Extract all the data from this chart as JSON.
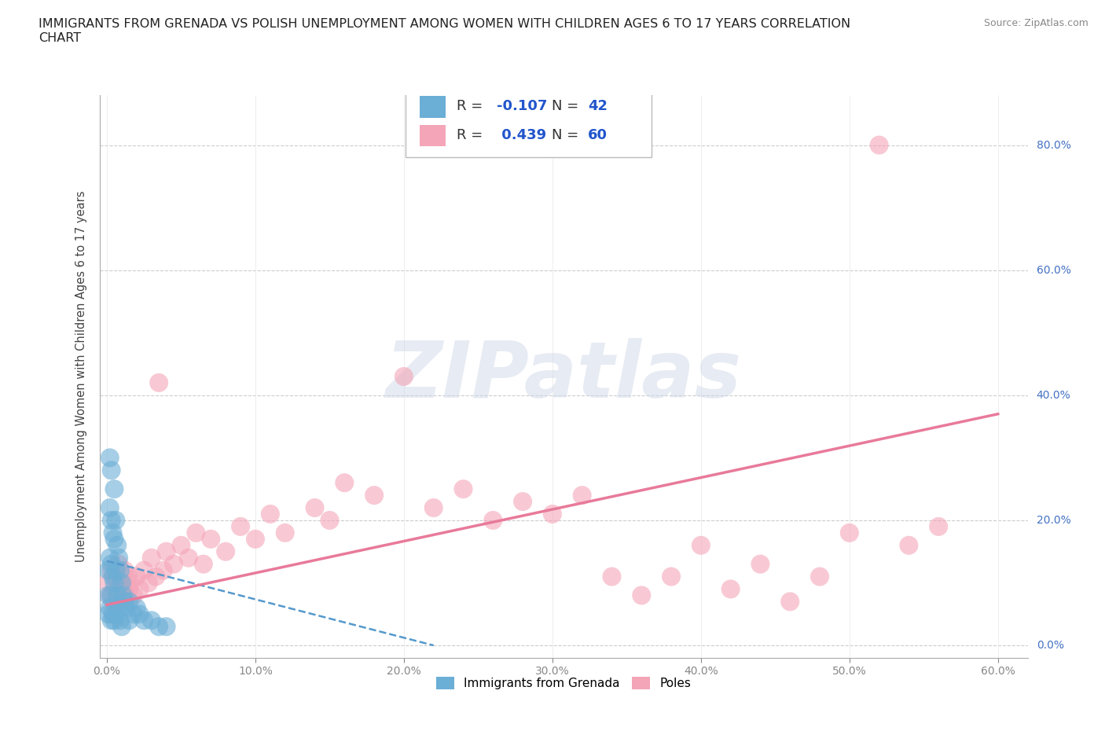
{
  "title": "IMMIGRANTS FROM GRENADA VS POLISH UNEMPLOYMENT AMONG WOMEN WITH CHILDREN AGES 6 TO 17 YEARS CORRELATION\nCHART",
  "source": "Source: ZipAtlas.com",
  "ylabel": "Unemployment Among Women with Children Ages 6 to 17 years",
  "xlim": [
    -0.005,
    0.62
  ],
  "ylim": [
    -0.02,
    0.88
  ],
  "xticks": [
    0.0,
    0.1,
    0.2,
    0.3,
    0.4,
    0.5,
    0.6
  ],
  "xticklabels": [
    "0.0%",
    "10.0%",
    "20.0%",
    "30.0%",
    "40.0%",
    "50.0%",
    "60.0%"
  ],
  "yticks": [
    0.0,
    0.2,
    0.4,
    0.6,
    0.8
  ],
  "yticklabels": [
    "0.0%",
    "20.0%",
    "40.0%",
    "60.0%",
    "80.0%"
  ],
  "grenada_color": "#6baed6",
  "poles_color": "#f4a5b8",
  "grenada_line_color": "#5599cc",
  "poles_line_color": "#e87a9a",
  "grenada_R": -0.107,
  "grenada_N": 42,
  "poles_R": 0.439,
  "poles_N": 60,
  "watermark": "ZIPatlas",
  "background_color": "#ffffff",
  "grenada_x": [
    0.001,
    0.001,
    0.001,
    0.002,
    0.002,
    0.002,
    0.002,
    0.003,
    0.003,
    0.003,
    0.003,
    0.003,
    0.004,
    0.004,
    0.004,
    0.005,
    0.005,
    0.005,
    0.005,
    0.006,
    0.006,
    0.006,
    0.007,
    0.007,
    0.008,
    0.008,
    0.009,
    0.009,
    0.01,
    0.01,
    0.011,
    0.012,
    0.013,
    0.015,
    0.015,
    0.018,
    0.02,
    0.022,
    0.025,
    0.03,
    0.035,
    0.04
  ],
  "grenada_y": [
    0.12,
    0.08,
    0.05,
    0.3,
    0.22,
    0.14,
    0.06,
    0.28,
    0.2,
    0.13,
    0.08,
    0.04,
    0.18,
    0.11,
    0.05,
    0.25,
    0.17,
    0.1,
    0.04,
    0.2,
    0.12,
    0.05,
    0.16,
    0.08,
    0.14,
    0.06,
    0.12,
    0.04,
    0.1,
    0.03,
    0.08,
    0.07,
    0.06,
    0.07,
    0.04,
    0.05,
    0.06,
    0.05,
    0.04,
    0.04,
    0.03,
    0.03
  ],
  "poles_x": [
    0.001,
    0.002,
    0.003,
    0.004,
    0.005,
    0.006,
    0.007,
    0.008,
    0.009,
    0.01,
    0.011,
    0.012,
    0.013,
    0.014,
    0.015,
    0.016,
    0.018,
    0.02,
    0.022,
    0.025,
    0.028,
    0.03,
    0.033,
    0.035,
    0.038,
    0.04,
    0.045,
    0.05,
    0.055,
    0.06,
    0.065,
    0.07,
    0.08,
    0.09,
    0.1,
    0.11,
    0.12,
    0.14,
    0.15,
    0.16,
    0.18,
    0.2,
    0.22,
    0.24,
    0.26,
    0.28,
    0.3,
    0.32,
    0.34,
    0.36,
    0.38,
    0.4,
    0.42,
    0.44,
    0.46,
    0.48,
    0.5,
    0.52,
    0.54,
    0.56
  ],
  "poles_y": [
    0.1,
    0.08,
    0.12,
    0.07,
    0.09,
    0.11,
    0.08,
    0.13,
    0.07,
    0.1,
    0.09,
    0.12,
    0.08,
    0.11,
    0.09,
    0.1,
    0.08,
    0.11,
    0.09,
    0.12,
    0.1,
    0.14,
    0.11,
    0.42,
    0.12,
    0.15,
    0.13,
    0.16,
    0.14,
    0.18,
    0.13,
    0.17,
    0.15,
    0.19,
    0.17,
    0.21,
    0.18,
    0.22,
    0.2,
    0.26,
    0.24,
    0.43,
    0.22,
    0.25,
    0.2,
    0.23,
    0.21,
    0.24,
    0.11,
    0.08,
    0.11,
    0.16,
    0.09,
    0.13,
    0.07,
    0.11,
    0.18,
    0.8,
    0.16,
    0.19
  ],
  "grenada_line_x": [
    0.0,
    0.22
  ],
  "grenada_line_y": [
    0.135,
    0.0
  ],
  "poles_line_x": [
    0.0,
    0.6
  ],
  "poles_line_y": [
    0.065,
    0.37
  ]
}
